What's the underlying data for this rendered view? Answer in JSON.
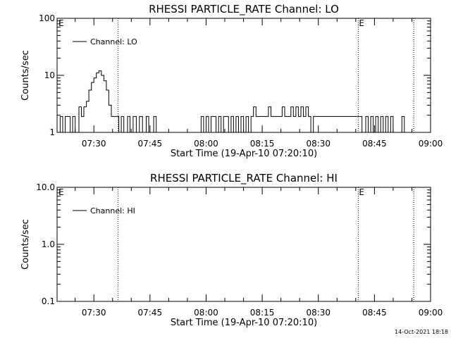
{
  "footer": {
    "timestamp": "14-Oct-2021 18:18"
  },
  "chart_data": [
    {
      "type": "line",
      "title": "RHESSI PARTICLE_RATE Channel: LO",
      "xlabel": "Start Time (19-Apr-10 07:20:10)",
      "ylabel": "Counts/sec",
      "y_scale": "log",
      "xlim": [
        "07:20:10",
        "09:00:00"
      ],
      "ylim": [
        1,
        100
      ],
      "x_ticks": [
        "07:30",
        "07:45",
        "08:00",
        "08:15",
        "08:30",
        "08:45",
        "09:00"
      ],
      "y_ticks": [
        "1",
        "10",
        "100"
      ],
      "legend": {
        "position": "top-left",
        "entries": [
          "Channel: LO"
        ]
      },
      "vlines": [
        {
          "x": "07:36:30",
          "label": ""
        },
        {
          "x": "08:40:40",
          "label": "E"
        },
        {
          "x": "08:55:30",
          "label": ""
        }
      ],
      "start_marker": "E",
      "series": [
        {
          "name": "Channel: LO",
          "points": [
            [
              "07:20:10",
              1
            ],
            [
              "07:21:00",
              1.9
            ],
            [
              "07:21:40",
              1
            ],
            [
              "07:22:20",
              1.9
            ],
            [
              "07:23:00",
              1.9
            ],
            [
              "07:23:40",
              1
            ],
            [
              "07:24:20",
              1.9
            ],
            [
              "07:25:00",
              1
            ],
            [
              "07:26:00",
              2.8
            ],
            [
              "07:26:40",
              1.9
            ],
            [
              "07:27:20",
              2.8
            ],
            [
              "07:28:00",
              3.5
            ],
            [
              "07:28:40",
              5.5
            ],
            [
              "07:29:20",
              7.5
            ],
            [
              "07:30:00",
              9
            ],
            [
              "07:30:40",
              11
            ],
            [
              "07:31:20",
              12
            ],
            [
              "07:32:00",
              10
            ],
            [
              "07:32:40",
              8
            ],
            [
              "07:33:20",
              5.5
            ],
            [
              "07:34:00",
              3
            ],
            [
              "07:34:40",
              1.9
            ],
            [
              "07:35:20",
              1.9
            ],
            [
              "07:36:00",
              1.9
            ],
            [
              "07:36:40",
              1
            ],
            [
              "07:37:20",
              1.9
            ],
            [
              "07:38:00",
              1
            ],
            [
              "07:39:00",
              1.9
            ],
            [
              "07:39:40",
              1
            ],
            [
              "07:40:30",
              1.9
            ],
            [
              "07:41:20",
              1
            ],
            [
              "07:42:10",
              1.9
            ],
            [
              "07:43:00",
              1
            ],
            [
              "07:44:00",
              1.9
            ],
            [
              "07:44:40",
              1
            ],
            [
              "07:46:00",
              1.9
            ],
            [
              "07:46:40",
              1
            ],
            [
              "07:58:00",
              1
            ],
            [
              "07:58:40",
              1.9
            ],
            [
              "07:59:20",
              1
            ],
            [
              "08:00:00",
              1.9
            ],
            [
              "08:00:40",
              1
            ],
            [
              "08:01:20",
              1.9
            ],
            [
              "08:02:00",
              1.9
            ],
            [
              "08:02:40",
              1
            ],
            [
              "08:03:20",
              1.9
            ],
            [
              "08:04:00",
              1
            ],
            [
              "08:04:40",
              1.9
            ],
            [
              "08:05:20",
              1.9
            ],
            [
              "08:06:00",
              1
            ],
            [
              "08:06:40",
              1.9
            ],
            [
              "08:07:20",
              1
            ],
            [
              "08:08:00",
              1.9
            ],
            [
              "08:08:40",
              1
            ],
            [
              "08:09:20",
              1.9
            ],
            [
              "08:10:00",
              1
            ],
            [
              "08:10:40",
              1.9
            ],
            [
              "08:11:20",
              1
            ],
            [
              "08:12:00",
              1.9
            ],
            [
              "08:12:40",
              2.8
            ],
            [
              "08:13:20",
              1.9
            ],
            [
              "08:16:00",
              1.9
            ],
            [
              "08:16:40",
              2.8
            ],
            [
              "08:17:20",
              1.9
            ],
            [
              "08:19:40",
              1.9
            ],
            [
              "08:20:20",
              2.8
            ],
            [
              "08:21:00",
              1.9
            ],
            [
              "08:22:00",
              1.9
            ],
            [
              "08:22:40",
              2.8
            ],
            [
              "08:23:20",
              1.9
            ],
            [
              "08:24:00",
              2.8
            ],
            [
              "08:24:40",
              1.9
            ],
            [
              "08:25:20",
              2.8
            ],
            [
              "08:26:00",
              1.9
            ],
            [
              "08:26:40",
              2.8
            ],
            [
              "08:27:20",
              1.9
            ],
            [
              "08:28:00",
              1
            ],
            [
              "08:28:40",
              1.9
            ],
            [
              "08:29:40",
              1.9
            ],
            [
              "08:41:00",
              1.9
            ],
            [
              "08:41:40",
              1
            ],
            [
              "08:42:40",
              1.9
            ],
            [
              "08:43:20",
              1
            ],
            [
              "08:44:00",
              1.9
            ],
            [
              "08:44:40",
              1
            ],
            [
              "08:45:20",
              1.9
            ],
            [
              "08:46:00",
              1
            ],
            [
              "08:46:40",
              1.9
            ],
            [
              "08:47:20",
              1
            ],
            [
              "08:48:00",
              1.9
            ],
            [
              "08:48:40",
              1
            ],
            [
              "08:49:20",
              1.9
            ],
            [
              "08:50:00",
              1
            ],
            [
              "08:51:40",
              1
            ],
            [
              "08:52:20",
              1.9
            ],
            [
              "08:53:00",
              1
            ]
          ]
        }
      ]
    },
    {
      "type": "line",
      "title": "RHESSI PARTICLE_RATE Channel: HI",
      "xlabel": "Start Time (19-Apr-10 07:20:10)",
      "ylabel": "Counts/sec",
      "y_scale": "log",
      "xlim": [
        "07:20:10",
        "09:00:00"
      ],
      "ylim": [
        0.1,
        10
      ],
      "x_ticks": [
        "07:30",
        "07:45",
        "08:00",
        "08:15",
        "08:30",
        "08:45",
        "09:00"
      ],
      "y_ticks": [
        "0.1",
        "1.0",
        "10.0"
      ],
      "legend": {
        "position": "top-left",
        "entries": [
          "Channel: HI"
        ]
      },
      "vlines": [
        {
          "x": "07:36:30",
          "label": ""
        },
        {
          "x": "08:40:40",
          "label": "E"
        },
        {
          "x": "08:55:30",
          "label": ""
        }
      ],
      "start_marker": "E",
      "series": [
        {
          "name": "Channel: HI",
          "points": []
        }
      ]
    }
  ]
}
